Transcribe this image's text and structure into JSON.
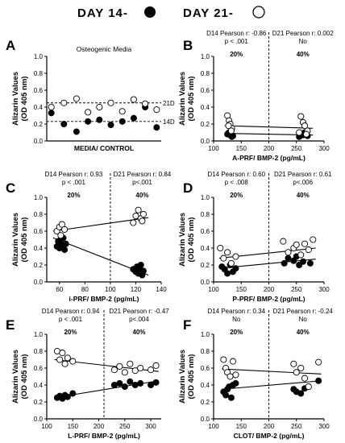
{
  "legend": {
    "day14_label": "DAY 14-",
    "day21_label": "DAY 21-",
    "day14_marker": "filled-circle",
    "day21_marker": "open-circle"
  },
  "y_axis_label_line1": "Alizarin Values",
  "y_axis_label_line2": "(OD 405 nm)",
  "chart_data": [
    {
      "panel": "A",
      "type": "scatter",
      "title": "Osteogenic Media",
      "xlabel": "MEDIA/ CONTROL",
      "ylim": [
        0.0,
        1.0
      ],
      "yticks": [
        "0.0",
        "0.2",
        "0.4",
        "0.6",
        "0.8",
        "1.0"
      ],
      "xlim": [
        0,
        10
      ],
      "xticks": [],
      "ref_lines": [
        {
          "label": "21D",
          "y": 0.45
        },
        {
          "label": "14D",
          "y": 0.23
        }
      ],
      "series": [
        {
          "marker": "filled",
          "points": [
            [
              0.4,
              0.33
            ],
            [
              1.5,
              0.2
            ],
            [
              2.6,
              0.11
            ],
            [
              3.6,
              0.23
            ],
            [
              4.6,
              0.25
            ],
            [
              5.6,
              0.19
            ],
            [
              6.6,
              0.23
            ],
            [
              7.6,
              0.27
            ],
            [
              8.6,
              0.4
            ],
            [
              9.6,
              0.16
            ]
          ]
        },
        {
          "marker": "open",
          "points": [
            [
              0.4,
              0.4
            ],
            [
              1.5,
              0.45
            ],
            [
              2.6,
              0.5
            ],
            [
              3.6,
              0.34
            ],
            [
              4.6,
              0.4
            ],
            [
              5.6,
              0.45
            ],
            [
              6.6,
              0.35
            ],
            [
              7.6,
              0.49
            ],
            [
              8.6,
              0.44
            ],
            [
              9.6,
              0.37
            ]
          ]
        }
      ]
    },
    {
      "panel": "B",
      "type": "scatter",
      "xlabel": "A-PRF/ BMP-2 (pg/mL)",
      "xlim": [
        100,
        300
      ],
      "ylim": [
        0.0,
        1.0
      ],
      "xticks": [
        "100",
        "150",
        "200",
        "250",
        "300"
      ],
      "yticks": [
        "0.0",
        "0.2",
        "0.4",
        "0.6",
        "0.8",
        "1.0"
      ],
      "vline": 200,
      "left_annotation": [
        "D14 Pearson r: -0.86",
        "p < .001",
        "20%"
      ],
      "right_annotation": [
        "D21 Pearson r: 0.002",
        "No",
        "40%"
      ],
      "series": [
        {
          "marker": "filled",
          "points": [
            [
              125,
              0.08
            ],
            [
              128,
              0.1
            ],
            [
              130,
              0.07
            ],
            [
              132,
              0.12
            ],
            [
              135,
              0.06
            ],
            [
              127,
              0.09
            ],
            [
              133,
              0.05
            ],
            [
              258,
              0.08
            ],
            [
              262,
              0.07
            ],
            [
              265,
              0.1
            ],
            [
              270,
              0.06
            ],
            [
              255,
              0.05
            ],
            [
              268,
              0.09
            ]
          ]
        },
        {
          "marker": "open",
          "points": [
            [
              125,
              0.3
            ],
            [
              128,
              0.24
            ],
            [
              130,
              0.2
            ],
            [
              133,
              0.15
            ],
            [
              127,
              0.18
            ],
            [
              132,
              0.12
            ],
            [
              258,
              0.29
            ],
            [
              262,
              0.22
            ],
            [
              265,
              0.18
            ],
            [
              270,
              0.12
            ],
            [
              255,
              0.1
            ],
            [
              268,
              0.08
            ]
          ]
        }
      ],
      "trend_lines": [
        {
          "marker": "open",
          "x": [
            120,
            280
          ],
          "y": [
            0.18,
            0.15
          ]
        },
        {
          "marker": "filled",
          "x": [
            120,
            280
          ],
          "y": [
            0.09,
            0.07
          ]
        }
      ]
    },
    {
      "panel": "C",
      "type": "scatter",
      "xlabel": "i-PRF/ BMP-2 (pg/mL)",
      "xlim": [
        50,
        140
      ],
      "ylim": [
        0.0,
        1.0
      ],
      "xticks": [
        "60",
        "80",
        "100",
        "120",
        "140"
      ],
      "yticks": [
        "0.0",
        "0.2",
        "0.4",
        "0.6",
        "0.8",
        "1.0"
      ],
      "vline": 100,
      "left_annotation": [
        "D14 Pearson r: 0.93",
        "p < .001",
        "20%"
      ],
      "right_annotation": [
        "D21 Pearson r: 0.84",
        "p<.001",
        "40%"
      ],
      "series": [
        {
          "marker": "filled",
          "points": [
            [
              58,
              0.42
            ],
            [
              59,
              0.48
            ],
            [
              60,
              0.4
            ],
            [
              61,
              0.5
            ],
            [
              62,
              0.44
            ],
            [
              63,
              0.52
            ],
            [
              64,
              0.38
            ],
            [
              65,
              0.45
            ],
            [
              118,
              0.15
            ],
            [
              120,
              0.12
            ],
            [
              121,
              0.18
            ],
            [
              122,
              0.1
            ],
            [
              123,
              0.14
            ],
            [
              124,
              0.2
            ],
            [
              125,
              0.08
            ],
            [
              126,
              0.13
            ]
          ]
        },
        {
          "marker": "open",
          "points": [
            [
              58,
              0.6
            ],
            [
              60,
              0.65
            ],
            [
              61,
              0.55
            ],
            [
              62,
              0.68
            ],
            [
              64,
              0.62
            ],
            [
              118,
              0.7
            ],
            [
              120,
              0.78
            ],
            [
              122,
              0.85
            ],
            [
              124,
              0.75
            ],
            [
              125,
              0.72
            ],
            [
              126,
              0.8
            ]
          ]
        }
      ],
      "trend_lines": [
        {
          "marker": "open",
          "x": [
            55,
            130
          ],
          "y": [
            0.6,
            0.76
          ]
        },
        {
          "marker": "filled",
          "x": [
            55,
            130
          ],
          "y": [
            0.52,
            0.08
          ]
        }
      ]
    },
    {
      "panel": "D",
      "type": "scatter",
      "xlabel": "P-PRF/ BMP-2 (pg/mL)",
      "xlim": [
        100,
        300
      ],
      "ylim": [
        0.0,
        1.0
      ],
      "xticks": [
        "100",
        "150",
        "200",
        "250",
        "300"
      ],
      "yticks": [
        "0.0",
        "0.2",
        "0.4",
        "0.6",
        "0.8",
        "1.0"
      ],
      "vline": 200,
      "left_annotation": [
        "D14 Pearson r: 0.60",
        "p < .008",
        "20%"
      ],
      "right_annotation": [
        "D21 Pearson r: 0.61",
        "p<.006",
        "40%"
      ],
      "series": [
        {
          "marker": "filled",
          "points": [
            [
              115,
              0.18
            ],
            [
              120,
              0.15
            ],
            [
              125,
              0.1
            ],
            [
              130,
              0.2
            ],
            [
              135,
              0.12
            ],
            [
              140,
              0.16
            ],
            [
              228,
              0.22
            ],
            [
              235,
              0.28
            ],
            [
              245,
              0.25
            ],
            [
              250,
              0.3
            ],
            [
              255,
              0.2
            ],
            [
              262,
              0.24
            ],
            [
              275,
              0.22
            ]
          ]
        },
        {
          "marker": "open",
          "points": [
            [
              112,
              0.4
            ],
            [
              118,
              0.28
            ],
            [
              125,
              0.35
            ],
            [
              132,
              0.22
            ],
            [
              140,
              0.3
            ],
            [
              226,
              0.48
            ],
            [
              235,
              0.35
            ],
            [
              245,
              0.4
            ],
            [
              250,
              0.44
            ],
            [
              258,
              0.32
            ],
            [
              265,
              0.45
            ],
            [
              272,
              0.38
            ],
            [
              280,
              0.5
            ]
          ]
        }
      ],
      "trend_lines": [
        {
          "marker": "open",
          "x": [
            110,
            285
          ],
          "y": [
            0.28,
            0.4
          ]
        },
        {
          "marker": "filled",
          "x": [
            110,
            285
          ],
          "y": [
            0.16,
            0.27
          ]
        }
      ]
    },
    {
      "panel": "E",
      "type": "scatter",
      "xlabel": "L-PRF/ BMP-2 (pg/mL)",
      "xlim": [
        100,
        320
      ],
      "ylim": [
        0.0,
        1.0
      ],
      "xticks": [
        "100",
        "150",
        "200",
        "250",
        "300"
      ],
      "yticks": [
        "0.0",
        "0.2",
        "0.4",
        "0.6",
        "0.8",
        "1.0"
      ],
      "vline": 210,
      "left_annotation": [
        "D14 Pearson r: 0.94",
        "p < .001",
        "20%"
      ],
      "right_annotation": [
        "D21 Pearson r: -0.47",
        "p<.004",
        "40%"
      ],
      "series": [
        {
          "marker": "filled",
          "points": [
            [
              120,
              0.25
            ],
            [
              125,
              0.27
            ],
            [
              130,
              0.24
            ],
            [
              135,
              0.28
            ],
            [
              140,
              0.26
            ],
            [
              150,
              0.3
            ],
            [
              230,
              0.4
            ],
            [
              240,
              0.42
            ],
            [
              250,
              0.38
            ],
            [
              260,
              0.44
            ],
            [
              270,
              0.4
            ],
            [
              280,
              0.42
            ],
            [
              300,
              0.4
            ],
            [
              310,
              0.43
            ]
          ]
        },
        {
          "marker": "open",
          "points": [
            [
              120,
              0.8
            ],
            [
              125,
              0.7
            ],
            [
              130,
              0.78
            ],
            [
              135,
              0.65
            ],
            [
              140,
              0.72
            ],
            [
              150,
              0.68
            ],
            [
              230,
              0.58
            ],
            [
              240,
              0.62
            ],
            [
              250,
              0.55
            ],
            [
              260,
              0.65
            ],
            [
              270,
              0.57
            ],
            [
              280,
              0.6
            ],
            [
              300,
              0.58
            ],
            [
              310,
              0.63
            ]
          ]
        }
      ],
      "trend_lines": [
        {
          "marker": "open",
          "x": [
            115,
            315
          ],
          "y": [
            0.7,
            0.56
          ]
        },
        {
          "marker": "filled",
          "x": [
            115,
            315
          ],
          "y": [
            0.25,
            0.45
          ]
        }
      ]
    },
    {
      "panel": "F",
      "type": "scatter",
      "xlabel": "CLOT/ BMP-2 (pg/mL)",
      "xlim": [
        100,
        300
      ],
      "ylim": [
        0.0,
        1.0
      ],
      "xticks": [
        "100",
        "150",
        "200",
        "250",
        "300"
      ],
      "yticks": [
        "0.0",
        "0.2",
        "0.4",
        "0.6",
        "0.8",
        "1.0"
      ],
      "vline": 200,
      "left_annotation": [
        "D14 Pearson r: 0.34",
        "No",
        "20%"
      ],
      "right_annotation": [
        "D21 Pearson r: -0.24",
        "No",
        "40%"
      ],
      "series": [
        {
          "marker": "filled",
          "points": [
            [
              118,
              0.32
            ],
            [
              122,
              0.28
            ],
            [
              125,
              0.35
            ],
            [
              128,
              0.38
            ],
            [
              132,
              0.25
            ],
            [
              135,
              0.4
            ],
            [
              140,
              0.42
            ],
            [
              245,
              0.35
            ],
            [
              250,
              0.32
            ],
            [
              258,
              0.3
            ],
            [
              265,
              0.36
            ],
            [
              290,
              0.45
            ]
          ]
        },
        {
          "marker": "open",
          "points": [
            [
              118,
              0.7
            ],
            [
              122,
              0.6
            ],
            [
              125,
              0.55
            ],
            [
              130,
              0.5
            ],
            [
              135,
              0.68
            ],
            [
              140,
              0.52
            ],
            [
              245,
              0.65
            ],
            [
              250,
              0.55
            ],
            [
              258,
              0.6
            ],
            [
              265,
              0.48
            ],
            [
              272,
              0.38
            ],
            [
              290,
              0.67
            ]
          ]
        }
      ],
      "trend_lines": [
        {
          "marker": "open",
          "x": [
            115,
            295
          ],
          "y": [
            0.59,
            0.53
          ]
        },
        {
          "marker": "filled",
          "x": [
            115,
            295
          ],
          "y": [
            0.35,
            0.45
          ]
        }
      ]
    }
  ]
}
